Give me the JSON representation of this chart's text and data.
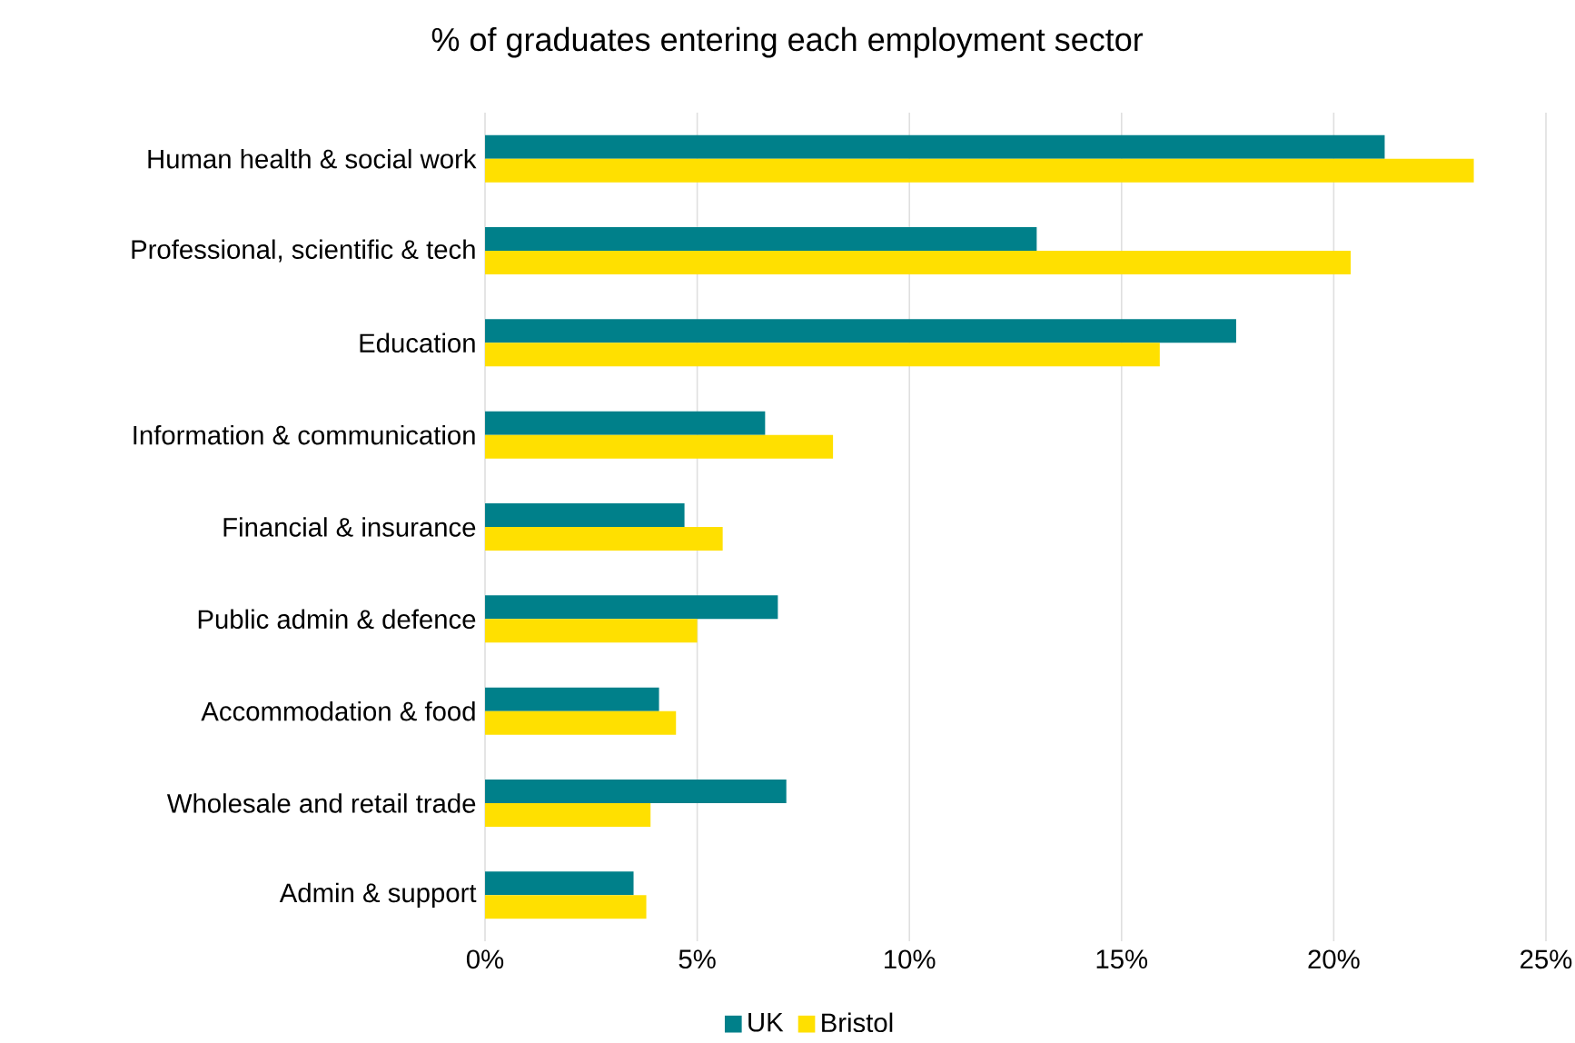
{
  "chart_data": {
    "type": "bar",
    "orientation": "horizontal",
    "title": "% of graduates entering each employment sector",
    "categories": [
      "Human health & social work",
      "Professional, scientific & tech",
      "Education",
      "Information & communication",
      "Financial & insurance",
      "Public admin & defence",
      "Accommodation & food",
      "Wholesale and retail trade",
      "Admin & support"
    ],
    "series": [
      {
        "name": "UK",
        "color": "#00808a",
        "values": [
          21.2,
          13.0,
          17.7,
          6.6,
          4.7,
          6.9,
          4.1,
          7.1,
          3.5
        ]
      },
      {
        "name": "Bristol",
        "color": "#ffe000",
        "values": [
          23.3,
          20.4,
          15.9,
          8.2,
          5.6,
          5.0,
          4.5,
          3.9,
          3.8
        ]
      }
    ],
    "xlim": [
      0,
      25
    ],
    "xticks": [
      {
        "value": 0,
        "label": "0%"
      },
      {
        "value": 5,
        "label": "5%"
      },
      {
        "value": 10,
        "label": "10%"
      },
      {
        "value": 15,
        "label": "15%"
      },
      {
        "value": 20,
        "label": "20%"
      },
      {
        "value": 25,
        "label": "25%"
      }
    ],
    "grid": "x",
    "legend": "bottom"
  }
}
